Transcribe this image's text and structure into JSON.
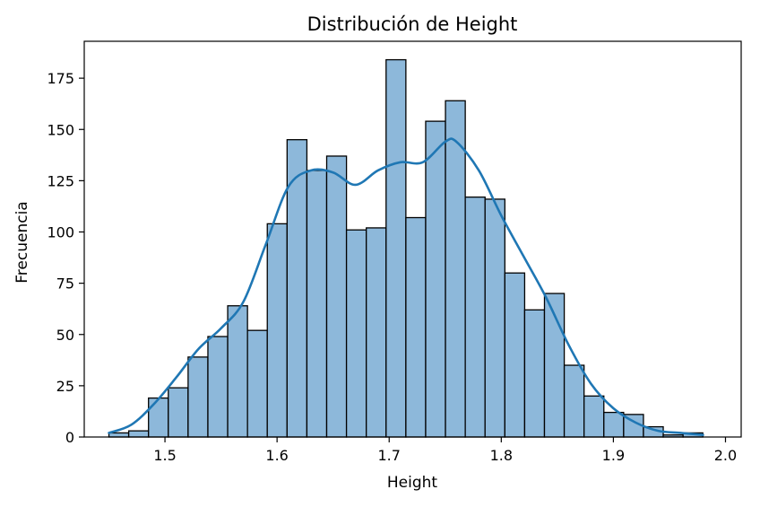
{
  "chart_data": {
    "type": "bar",
    "subtype": "histogram-with-kde",
    "title": "Distribución de Height",
    "xlabel": "Height",
    "ylabel": "Frecuencia",
    "xlim": [
      1.428,
      2.014
    ],
    "ylim": [
      0,
      193
    ],
    "x_ticks": [
      1.5,
      1.6,
      1.7,
      1.8,
      1.9,
      2.0
    ],
    "x_tick_labels": [
      "1.5",
      "1.6",
      "1.7",
      "1.8",
      "1.9",
      "2.0"
    ],
    "y_ticks": [
      0,
      25,
      50,
      75,
      100,
      125,
      150,
      175
    ],
    "y_tick_labels": [
      "0",
      "25",
      "50",
      "75",
      "100",
      "125",
      "150",
      "175"
    ],
    "bins": {
      "start": 1.45,
      "width": 0.01766,
      "counts": [
        2,
        3,
        19,
        24,
        39,
        49,
        64,
        52,
        104,
        145,
        130,
        137,
        101,
        102,
        184,
        107,
        154,
        164,
        117,
        116,
        80,
        62,
        70,
        35,
        20,
        12,
        11,
        5,
        1,
        2
      ]
    },
    "kde": {
      "x": [
        1.45,
        1.47,
        1.49,
        1.51,
        1.53,
        1.55,
        1.57,
        1.59,
        1.61,
        1.63,
        1.65,
        1.67,
        1.69,
        1.71,
        1.73,
        1.75,
        1.76,
        1.78,
        1.8,
        1.82,
        1.84,
        1.86,
        1.88,
        1.9,
        1.92,
        1.94,
        1.96,
        1.98
      ],
      "y": [
        2,
        6,
        16,
        29,
        43,
        53,
        66,
        94,
        122,
        130,
        129,
        123,
        130,
        134,
        134,
        144,
        144,
        130,
        108,
        88,
        68,
        45,
        26,
        14,
        7,
        3,
        2,
        1
      ]
    },
    "grid": false,
    "legend": "none",
    "bar_color": "#8db8da",
    "bar_edge_color": "#000000",
    "kde_color": "#1f77b4"
  }
}
